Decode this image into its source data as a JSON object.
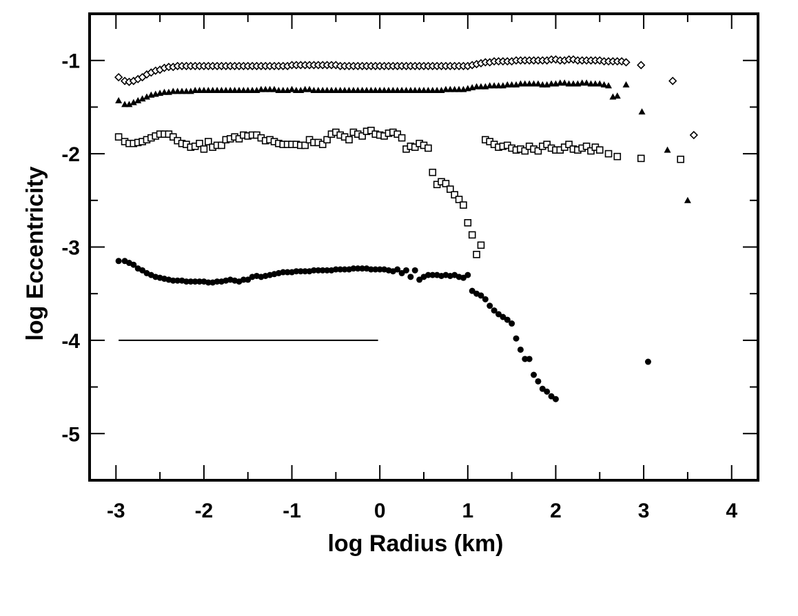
{
  "chart_data": {
    "type": "scatter",
    "title": "",
    "xlabel": "log Radius (km)",
    "ylabel": "log Eccentricity",
    "xlim": [
      -3.3,
      4.3
    ],
    "ylim": [
      -5.5,
      -0.5
    ],
    "xticks": [
      -3,
      -2,
      -1,
      0,
      1,
      2,
      3,
      4
    ],
    "yticks": [
      -5,
      -4,
      -3,
      -2,
      -1
    ],
    "grid": false,
    "legend": "none",
    "series": [
      {
        "marker": "diamond-open",
        "x": [
          -2.97,
          -2.9,
          -2.85,
          -2.8,
          -2.75,
          -2.7,
          -2.65,
          -2.6,
          -2.55,
          -2.5,
          -2.45,
          -2.4,
          -2.35,
          -2.3,
          -2.25,
          -2.2,
          -2.15,
          -2.1,
          -2.05,
          -2.0,
          -1.95,
          -1.9,
          -1.85,
          -1.8,
          -1.75,
          -1.7,
          -1.65,
          -1.6,
          -1.55,
          -1.5,
          -1.45,
          -1.4,
          -1.35,
          -1.3,
          -1.25,
          -1.2,
          -1.15,
          -1.1,
          -1.05,
          -1.0,
          -0.95,
          -0.9,
          -0.85,
          -0.8,
          -0.75,
          -0.7,
          -0.65,
          -0.6,
          -0.55,
          -0.5,
          -0.45,
          -0.4,
          -0.35,
          -0.3,
          -0.25,
          -0.2,
          -0.15,
          -0.1,
          -0.05,
          0.0,
          0.05,
          0.1,
          0.15,
          0.2,
          0.25,
          0.3,
          0.35,
          0.4,
          0.45,
          0.5,
          0.55,
          0.6,
          0.65,
          0.7,
          0.75,
          0.8,
          0.85,
          0.9,
          0.95,
          1.0,
          1.05,
          1.1,
          1.15,
          1.2,
          1.25,
          1.3,
          1.35,
          1.4,
          1.45,
          1.5,
          1.55,
          1.6,
          1.65,
          1.7,
          1.75,
          1.8,
          1.85,
          1.9,
          1.95,
          2.0,
          2.05,
          2.1,
          2.15,
          2.2,
          2.25,
          2.3,
          2.35,
          2.4,
          2.45,
          2.5,
          2.55,
          2.6,
          2.65,
          2.7,
          2.75,
          2.8,
          2.97,
          3.33,
          3.57
        ],
        "y": [
          -1.18,
          -1.22,
          -1.23,
          -1.22,
          -1.2,
          -1.18,
          -1.15,
          -1.13,
          -1.11,
          -1.1,
          -1.08,
          -1.07,
          -1.07,
          -1.06,
          -1.06,
          -1.06,
          -1.06,
          -1.06,
          -1.06,
          -1.06,
          -1.06,
          -1.06,
          -1.06,
          -1.06,
          -1.06,
          -1.06,
          -1.06,
          -1.06,
          -1.06,
          -1.06,
          -1.06,
          -1.06,
          -1.06,
          -1.06,
          -1.06,
          -1.06,
          -1.06,
          -1.06,
          -1.06,
          -1.05,
          -1.05,
          -1.05,
          -1.05,
          -1.05,
          -1.05,
          -1.05,
          -1.05,
          -1.05,
          -1.05,
          -1.05,
          -1.06,
          -1.06,
          -1.06,
          -1.06,
          -1.06,
          -1.06,
          -1.06,
          -1.06,
          -1.06,
          -1.06,
          -1.06,
          -1.06,
          -1.06,
          -1.06,
          -1.06,
          -1.06,
          -1.06,
          -1.06,
          -1.06,
          -1.06,
          -1.06,
          -1.06,
          -1.06,
          -1.06,
          -1.06,
          -1.06,
          -1.06,
          -1.06,
          -1.06,
          -1.06,
          -1.05,
          -1.04,
          -1.03,
          -1.02,
          -1.02,
          -1.01,
          -1.01,
          -1.01,
          -1.01,
          -1.01,
          -1.0,
          -1.0,
          -1.0,
          -1.0,
          -1.0,
          -1.0,
          -1.0,
          -1.0,
          -0.99,
          -0.99,
          -1.0,
          -1.0,
          -0.99,
          -0.99,
          -1.0,
          -1.0,
          -1.0,
          -1.0,
          -1.0,
          -1.0,
          -1.01,
          -1.01,
          -1.01,
          -1.01,
          -1.01,
          -1.02,
          -1.05,
          -1.22,
          -1.8
        ]
      },
      {
        "marker": "triangle-filled",
        "x": [
          -2.97,
          -2.9,
          -2.85,
          -2.8,
          -2.75,
          -2.7,
          -2.65,
          -2.6,
          -2.55,
          -2.5,
          -2.45,
          -2.4,
          -2.35,
          -2.3,
          -2.25,
          -2.2,
          -2.15,
          -2.1,
          -2.05,
          -2.0,
          -1.95,
          -1.9,
          -1.85,
          -1.8,
          -1.75,
          -1.7,
          -1.65,
          -1.6,
          -1.55,
          -1.5,
          -1.45,
          -1.4,
          -1.35,
          -1.3,
          -1.25,
          -1.2,
          -1.15,
          -1.1,
          -1.05,
          -1.0,
          -0.95,
          -0.9,
          -0.85,
          -0.8,
          -0.75,
          -0.7,
          -0.65,
          -0.6,
          -0.55,
          -0.5,
          -0.45,
          -0.4,
          -0.35,
          -0.3,
          -0.25,
          -0.2,
          -0.15,
          -0.1,
          -0.05,
          0.0,
          0.05,
          0.1,
          0.15,
          0.2,
          0.25,
          0.3,
          0.35,
          0.4,
          0.45,
          0.5,
          0.55,
          0.6,
          0.65,
          0.7,
          0.75,
          0.8,
          0.85,
          0.9,
          0.95,
          1.0,
          1.05,
          1.1,
          1.15,
          1.2,
          1.25,
          1.3,
          1.35,
          1.4,
          1.45,
          1.5,
          1.55,
          1.6,
          1.65,
          1.7,
          1.75,
          1.8,
          1.85,
          1.9,
          1.95,
          2.0,
          2.05,
          2.1,
          2.15,
          2.2,
          2.25,
          2.3,
          2.35,
          2.4,
          2.45,
          2.5,
          2.55,
          2.6,
          2.65,
          2.7,
          2.8,
          2.98,
          3.27,
          3.5
        ],
        "y": [
          -1.43,
          -1.47,
          -1.47,
          -1.45,
          -1.43,
          -1.41,
          -1.39,
          -1.37,
          -1.36,
          -1.35,
          -1.34,
          -1.34,
          -1.33,
          -1.33,
          -1.33,
          -1.33,
          -1.33,
          -1.32,
          -1.32,
          -1.32,
          -1.32,
          -1.32,
          -1.32,
          -1.32,
          -1.32,
          -1.32,
          -1.32,
          -1.32,
          -1.32,
          -1.32,
          -1.32,
          -1.32,
          -1.31,
          -1.31,
          -1.31,
          -1.31,
          -1.32,
          -1.32,
          -1.32,
          -1.31,
          -1.32,
          -1.32,
          -1.31,
          -1.31,
          -1.32,
          -1.32,
          -1.32,
          -1.32,
          -1.32,
          -1.32,
          -1.32,
          -1.32,
          -1.32,
          -1.32,
          -1.32,
          -1.32,
          -1.32,
          -1.32,
          -1.32,
          -1.32,
          -1.32,
          -1.32,
          -1.32,
          -1.32,
          -1.32,
          -1.32,
          -1.32,
          -1.32,
          -1.32,
          -1.32,
          -1.32,
          -1.32,
          -1.32,
          -1.32,
          -1.31,
          -1.31,
          -1.31,
          -1.31,
          -1.31,
          -1.3,
          -1.29,
          -1.28,
          -1.28,
          -1.28,
          -1.27,
          -1.27,
          -1.27,
          -1.27,
          -1.26,
          -1.26,
          -1.26,
          -1.25,
          -1.25,
          -1.25,
          -1.25,
          -1.25,
          -1.26,
          -1.26,
          -1.25,
          -1.25,
          -1.24,
          -1.24,
          -1.25,
          -1.25,
          -1.25,
          -1.24,
          -1.24,
          -1.25,
          -1.25,
          -1.25,
          -1.26,
          -1.27,
          -1.39,
          -1.38,
          -1.26,
          -1.55,
          -1.96,
          -2.5
        ]
      },
      {
        "marker": "square-open",
        "x": [
          -2.97,
          -2.9,
          -2.85,
          -2.8,
          -2.75,
          -2.7,
          -2.65,
          -2.6,
          -2.55,
          -2.5,
          -2.45,
          -2.4,
          -2.35,
          -2.3,
          -2.25,
          -2.2,
          -2.15,
          -2.1,
          -2.05,
          -2.0,
          -1.95,
          -1.9,
          -1.85,
          -1.8,
          -1.75,
          -1.7,
          -1.65,
          -1.6,
          -1.55,
          -1.5,
          -1.45,
          -1.4,
          -1.35,
          -1.3,
          -1.25,
          -1.2,
          -1.15,
          -1.1,
          -1.05,
          -1.0,
          -0.95,
          -0.9,
          -0.85,
          -0.8,
          -0.75,
          -0.7,
          -0.65,
          -0.6,
          -0.55,
          -0.5,
          -0.45,
          -0.4,
          -0.35,
          -0.3,
          -0.25,
          -0.2,
          -0.15,
          -0.1,
          -0.05,
          0.0,
          0.05,
          0.1,
          0.15,
          0.2,
          0.25,
          0.3,
          0.35,
          0.4,
          0.45,
          0.5,
          0.55,
          0.6,
          0.65,
          0.7,
          0.75,
          0.8,
          0.85,
          0.9,
          0.95,
          1.0,
          1.05,
          1.1,
          1.15,
          1.2,
          1.25,
          1.3,
          1.35,
          1.4,
          1.45,
          1.5,
          1.55,
          1.6,
          1.65,
          1.7,
          1.75,
          1.8,
          1.85,
          1.9,
          1.95,
          2.0,
          2.05,
          2.1,
          2.15,
          2.2,
          2.25,
          2.3,
          2.35,
          2.4,
          2.45,
          2.5,
          2.6,
          2.7,
          2.97,
          3.42
        ],
        "y": [
          -1.82,
          -1.87,
          -1.89,
          -1.89,
          -1.88,
          -1.87,
          -1.85,
          -1.83,
          -1.81,
          -1.79,
          -1.79,
          -1.79,
          -1.82,
          -1.86,
          -1.89,
          -1.9,
          -1.93,
          -1.92,
          -1.89,
          -1.95,
          -1.87,
          -1.93,
          -1.91,
          -1.91,
          -1.85,
          -1.84,
          -1.82,
          -1.84,
          -1.8,
          -1.81,
          -1.8,
          -1.8,
          -1.83,
          -1.86,
          -1.85,
          -1.87,
          -1.89,
          -1.9,
          -1.9,
          -1.9,
          -1.9,
          -1.91,
          -1.91,
          -1.85,
          -1.88,
          -1.88,
          -1.9,
          -1.85,
          -1.79,
          -1.77,
          -1.8,
          -1.82,
          -1.85,
          -1.77,
          -1.79,
          -1.81,
          -1.76,
          -1.75,
          -1.79,
          -1.8,
          -1.81,
          -1.78,
          -1.77,
          -1.79,
          -1.83,
          -1.95,
          -1.92,
          -1.93,
          -1.89,
          -1.91,
          -1.94,
          -2.2,
          -2.33,
          -2.3,
          -2.32,
          -2.38,
          -2.44,
          -2.49,
          -2.55,
          -2.74,
          -2.87,
          -3.08,
          -2.98,
          -1.85,
          -1.87,
          -1.9,
          -1.93,
          -1.92,
          -1.91,
          -1.94,
          -1.96,
          -1.95,
          -1.97,
          -1.92,
          -1.95,
          -1.97,
          -1.92,
          -1.9,
          -1.94,
          -1.96,
          -1.96,
          -1.93,
          -1.9,
          -1.95,
          -1.96,
          -1.94,
          -1.92,
          -1.97,
          -1.93,
          -1.96,
          -2.0,
          -2.03,
          -2.05,
          -2.06
        ]
      },
      {
        "marker": "circle-filled",
        "x": [
          -2.97,
          -2.9,
          -2.85,
          -2.8,
          -2.75,
          -2.7,
          -2.65,
          -2.6,
          -2.55,
          -2.5,
          -2.45,
          -2.4,
          -2.35,
          -2.3,
          -2.25,
          -2.2,
          -2.15,
          -2.1,
          -2.05,
          -2.0,
          -1.95,
          -1.9,
          -1.85,
          -1.8,
          -1.75,
          -1.7,
          -1.65,
          -1.6,
          -1.55,
          -1.5,
          -1.45,
          -1.4,
          -1.35,
          -1.3,
          -1.25,
          -1.2,
          -1.15,
          -1.1,
          -1.05,
          -1.0,
          -0.95,
          -0.9,
          -0.85,
          -0.8,
          -0.75,
          -0.7,
          -0.65,
          -0.6,
          -0.55,
          -0.5,
          -0.45,
          -0.4,
          -0.35,
          -0.3,
          -0.25,
          -0.2,
          -0.15,
          -0.1,
          -0.05,
          0.0,
          0.05,
          0.1,
          0.15,
          0.2,
          0.25,
          0.3,
          0.35,
          0.4,
          0.45,
          0.5,
          0.55,
          0.6,
          0.65,
          0.7,
          0.75,
          0.8,
          0.85,
          0.9,
          0.95,
          1.0,
          1.05,
          1.1,
          1.15,
          1.2,
          1.25,
          1.3,
          1.35,
          1.4,
          1.45,
          1.5,
          1.55,
          1.6,
          1.65,
          1.7,
          1.75,
          1.8,
          1.85,
          1.9,
          1.95,
          2.0,
          3.05
        ],
        "y": [
          -3.15,
          -3.15,
          -3.17,
          -3.19,
          -3.23,
          -3.25,
          -3.28,
          -3.3,
          -3.32,
          -3.33,
          -3.34,
          -3.35,
          -3.36,
          -3.36,
          -3.36,
          -3.37,
          -3.37,
          -3.37,
          -3.37,
          -3.37,
          -3.38,
          -3.38,
          -3.37,
          -3.37,
          -3.36,
          -3.35,
          -3.36,
          -3.37,
          -3.35,
          -3.35,
          -3.32,
          -3.31,
          -3.32,
          -3.31,
          -3.3,
          -3.29,
          -3.28,
          -3.27,
          -3.27,
          -3.27,
          -3.26,
          -3.26,
          -3.26,
          -3.26,
          -3.25,
          -3.25,
          -3.25,
          -3.25,
          -3.25,
          -3.24,
          -3.24,
          -3.24,
          -3.24,
          -3.23,
          -3.23,
          -3.23,
          -3.23,
          -3.24,
          -3.24,
          -3.24,
          -3.24,
          -3.25,
          -3.26,
          -3.24,
          -3.28,
          -3.25,
          -3.32,
          -3.25,
          -3.35,
          -3.32,
          -3.3,
          -3.3,
          -3.3,
          -3.31,
          -3.3,
          -3.31,
          -3.3,
          -3.32,
          -3.33,
          -3.3,
          -3.47,
          -3.5,
          -3.52,
          -3.56,
          -3.63,
          -3.68,
          -3.72,
          -3.75,
          -3.78,
          -3.82,
          -3.98,
          -4.1,
          -4.2,
          -4.2,
          -4.37,
          -4.44,
          -4.52,
          -4.55,
          -4.6,
          -4.63,
          -4.23
        ]
      }
    ],
    "reference_line": {
      "x": [
        -2.97,
        -0.02
      ],
      "y": [
        -4.0,
        -4.0
      ]
    }
  }
}
